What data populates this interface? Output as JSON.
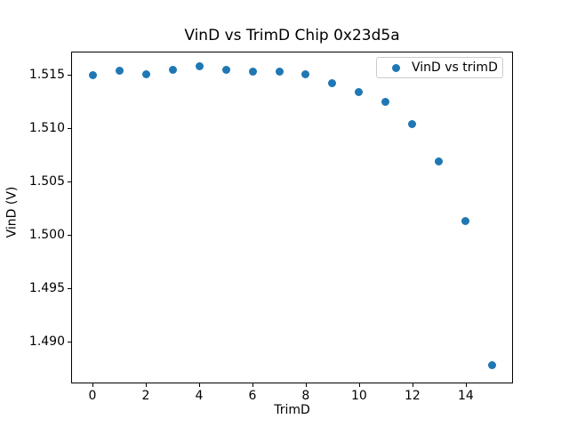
{
  "figure": {
    "background": "#ffffff",
    "accent_color": "#1f77b4"
  },
  "chart_data": {
    "type": "scatter",
    "title": "VinD vs TrimD Chip 0x23d5a",
    "xlabel": "TrimD",
    "ylabel": "VinD (V)",
    "legend": {
      "label": "VinD vs trimD",
      "position": "upper right",
      "marker": "circle",
      "marker_color": "#1f77b4"
    },
    "marker_color": "#1f77b4",
    "grid": false,
    "x": [
      0,
      1,
      2,
      3,
      4,
      5,
      6,
      7,
      8,
      9,
      10,
      11,
      12,
      13,
      14,
      15
    ],
    "y": [
      1.515,
      1.5154,
      1.5151,
      1.5155,
      1.5158,
      1.5155,
      1.5153,
      1.5153,
      1.5151,
      1.5142,
      1.5134,
      1.5125,
      1.5104,
      1.5069,
      1.5013,
      1.4878
    ],
    "xlim": [
      -0.8,
      15.77
    ],
    "ylim": [
      1.48611,
      1.51719
    ],
    "xticks": [
      0,
      2,
      4,
      6,
      8,
      10,
      12,
      14
    ],
    "xtick_labels": [
      "0",
      "2",
      "4",
      "6",
      "8",
      "10",
      "12",
      "14"
    ],
    "yticks": [
      1.515,
      1.51,
      1.505,
      1.5,
      1.495,
      1.49
    ],
    "ytick_labels": [
      "1.515",
      "1.510",
      "1.505",
      "1.500",
      "1.495",
      "1.490"
    ]
  }
}
